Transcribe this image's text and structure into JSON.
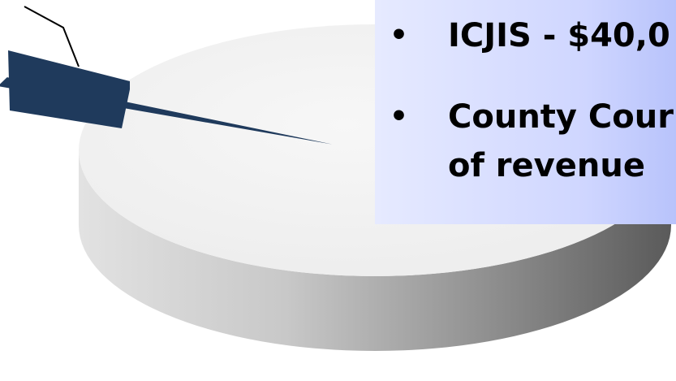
{
  "callout": {
    "bullets": [
      {
        "text": "ICJIS - $40,0"
      },
      {
        "text": "County Cour",
        "continuation": "of revenue"
      }
    ],
    "bullet_glyph": "•",
    "colors": {
      "background_left": "#e6eaff",
      "background_right": "#b8c3fb"
    }
  },
  "chart_data": {
    "type": "pie",
    "title": "",
    "style": "3d-exploded",
    "slices": [
      {
        "label": "",
        "fraction": 0.99,
        "color": "#f0f0f0"
      },
      {
        "label": "",
        "fraction": 0.01,
        "color": "#1f3a5c",
        "exploded": true
      }
    ],
    "leader_line": true,
    "legend": "none"
  }
}
